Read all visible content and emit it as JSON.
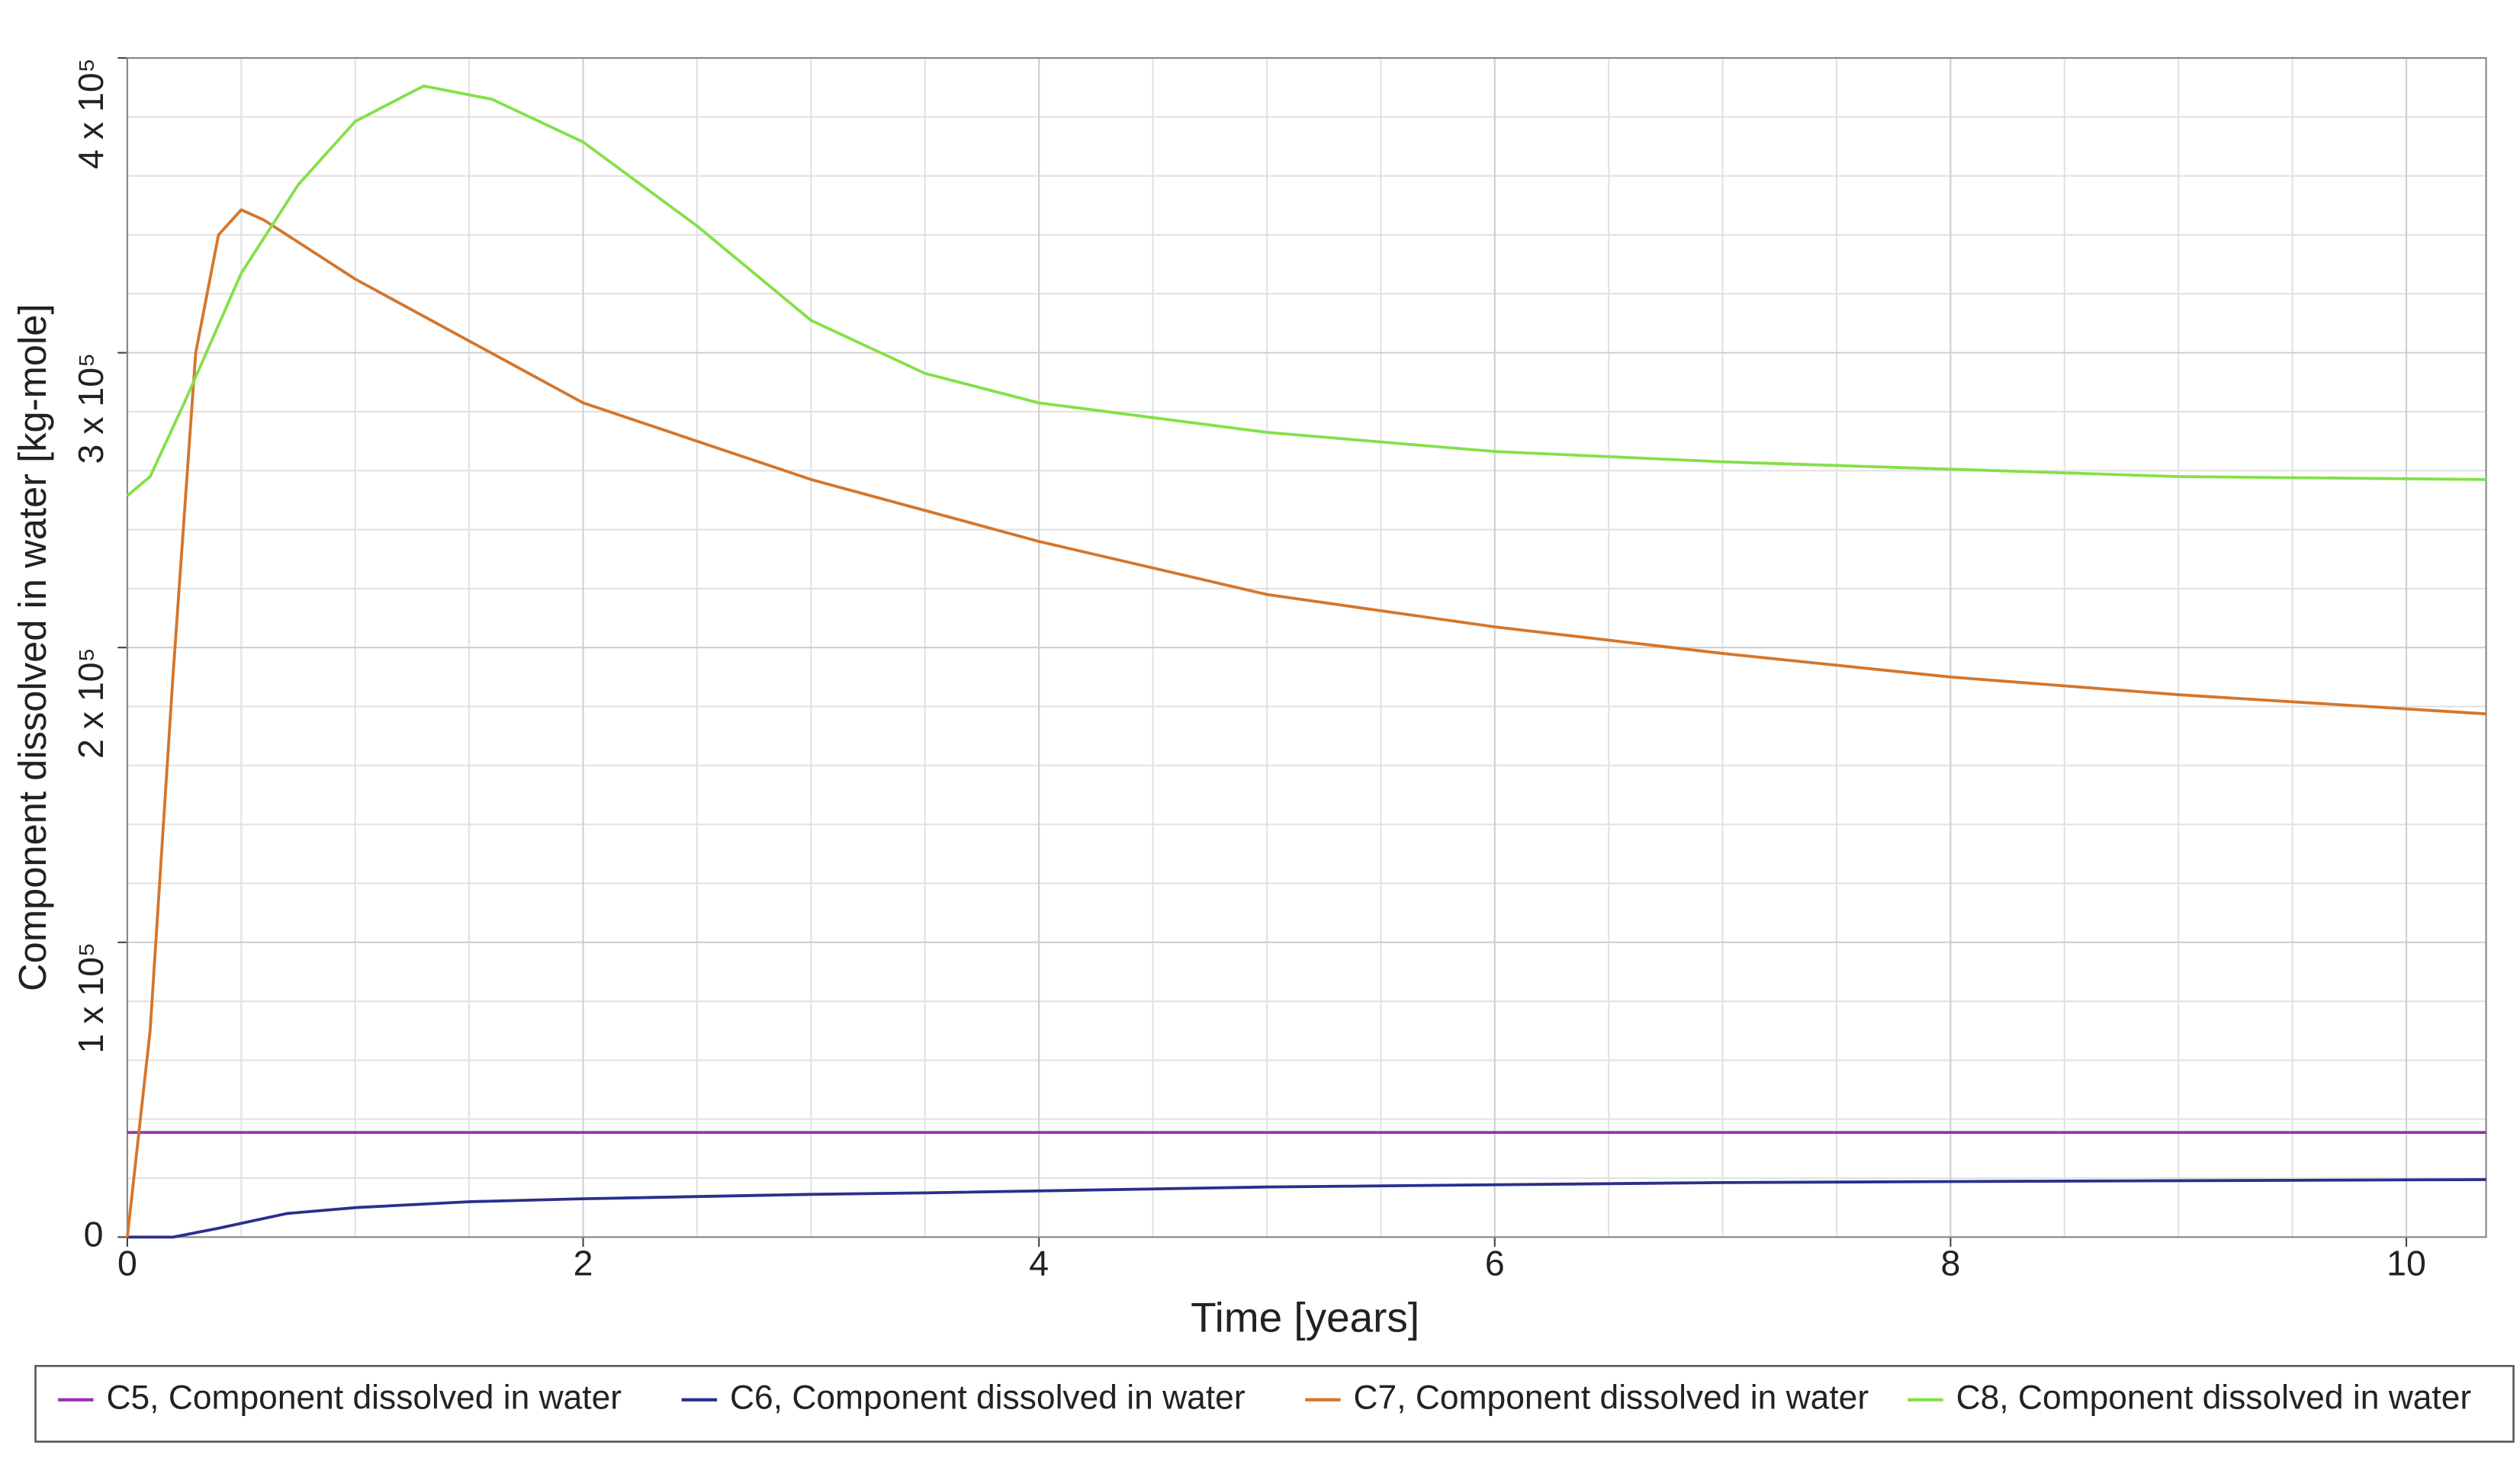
{
  "chart_data": {
    "type": "line",
    "x_label": "Time [years]",
    "y_label": "Component dissolved in water [kg-mole]",
    "xlim": [
      0,
      10.35
    ],
    "ylim": [
      0,
      400000
    ],
    "xticks": [
      0,
      2,
      4,
      6,
      8,
      10
    ],
    "yticks": [
      0,
      {
        "value": 100000,
        "label": "1 x 10⁵"
      },
      {
        "value": 200000,
        "label": "2 x 10⁵"
      },
      {
        "value": 300000,
        "label": "3 x 10⁵"
      },
      {
        "value": 400000,
        "label": "4 x 10⁵"
      }
    ],
    "minor_xticks": [
      0.5,
      1,
      1.5,
      2.5,
      3,
      3.5,
      4.5,
      5,
      5.5,
      6.5,
      7,
      7.5,
      8.5,
      9,
      9.5
    ],
    "minor_yticks": [
      20000,
      40000,
      60000,
      80000,
      120000,
      140000,
      160000,
      180000,
      220000,
      240000,
      260000,
      280000,
      320000,
      340000,
      360000,
      380000
    ],
    "grid": true,
    "legend": "bottom",
    "series": [
      {
        "name": "C5, Component dissolved in water",
        "color": "#9b30b0",
        "x": [
          0,
          10.35
        ],
        "values": [
          35500,
          35500
        ]
      },
      {
        "name": "C6, Component dissolved in water",
        "color": "#2b2f8c",
        "x": [
          0,
          0.2,
          0.4,
          0.7,
          1,
          1.5,
          2,
          3,
          3.5,
          5,
          7,
          8.5,
          10.35
        ],
        "values": [
          0,
          0,
          3000,
          8000,
          10000,
          12000,
          13000,
          14500,
          15000,
          17000,
          18500,
          19000,
          19500
        ]
      },
      {
        "name": "C7, Component dissolved in water",
        "color": "#d4762c",
        "x": [
          0,
          0.1,
          0.2,
          0.3,
          0.4,
          0.5,
          0.6,
          1,
          1.5,
          2,
          3,
          4,
          5,
          6,
          7,
          8,
          9,
          10.35
        ],
        "values": [
          0,
          70000,
          190000,
          300000,
          340000,
          348500,
          345000,
          325000,
          304000,
          283000,
          257000,
          236000,
          218000,
          207000,
          198000,
          190000,
          184000,
          177500
        ]
      },
      {
        "name": "C8, Component dissolved in water",
        "color": "#84e048",
        "x": [
          0,
          0.1,
          0.25,
          0.5,
          0.75,
          1,
          1.3,
          1.6,
          2,
          2.5,
          3,
          3.5,
          4,
          5,
          6,
          7,
          8,
          9,
          10.35
        ],
        "values": [
          251500,
          258000,
          283000,
          327000,
          357000,
          378500,
          390500,
          386000,
          371500,
          343000,
          311000,
          293000,
          283000,
          273000,
          266500,
          263000,
          260500,
          258000,
          257000
        ]
      }
    ]
  }
}
